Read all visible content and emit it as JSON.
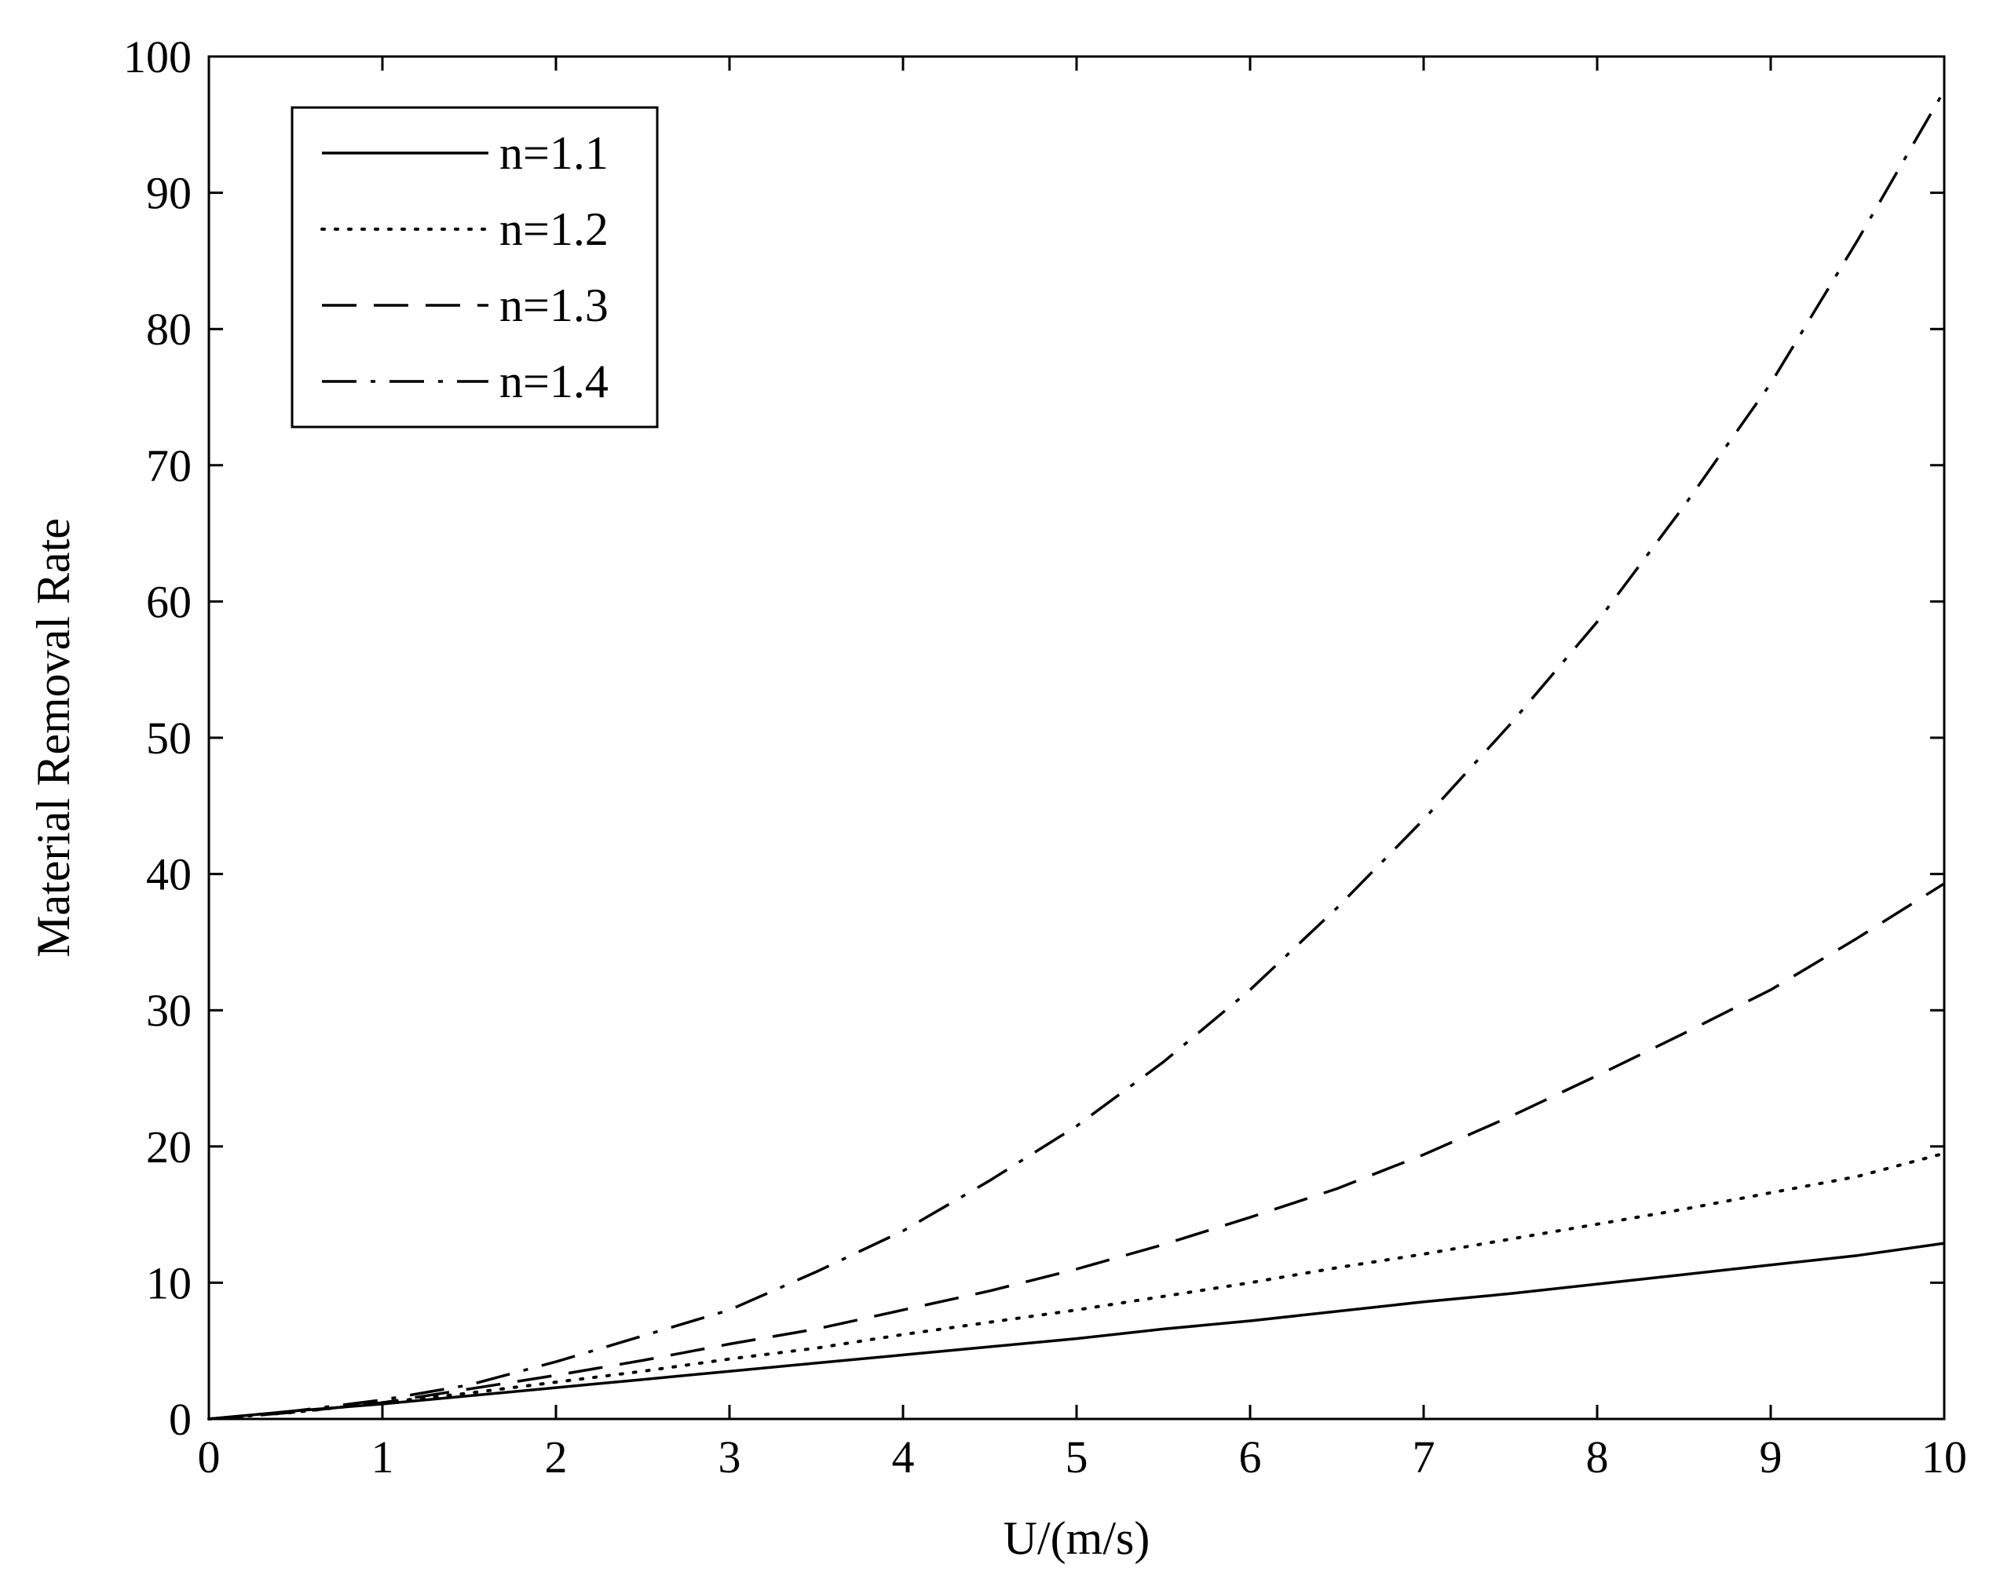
{
  "chart_data": {
    "type": "line",
    "title": "",
    "xlabel": "U/(m/s)",
    "ylabel": "Material Removal Rate",
    "xlim": [
      0,
      10
    ],
    "ylim": [
      0,
      100
    ],
    "x_ticks": [
      "0",
      "1",
      "2",
      "3",
      "4",
      "5",
      "6",
      "7",
      "8",
      "9",
      "10"
    ],
    "y_ticks": [
      "0",
      "10",
      "20",
      "30",
      "40",
      "50",
      "60",
      "70",
      "80",
      "90",
      "100"
    ],
    "grid": false,
    "legend_position": "top-left",
    "x": [
      0,
      0.5,
      1,
      1.5,
      2,
      2.5,
      3,
      3.5,
      4,
      4.5,
      5,
      5.5,
      6,
      6.5,
      7,
      7.5,
      8,
      8.5,
      9,
      9.5,
      10
    ],
    "series": [
      {
        "name": "n=1.1",
        "line_style": "solid",
        "color": "#000000",
        "values": [
          0,
          0.6,
          1.1,
          1.7,
          2.3,
          2.9,
          3.5,
          4.1,
          4.7,
          5.3,
          5.9,
          6.6,
          7.2,
          7.9,
          8.6,
          9.2,
          9.9,
          10.6,
          11.3,
          12.0,
          12.9
        ]
      },
      {
        "name": "n=1.2",
        "line_style": "dotted",
        "color": "#000000",
        "values": [
          0,
          0.5,
          1.2,
          1.9,
          2.7,
          3.5,
          4.4,
          5.2,
          6.2,
          7.1,
          8.0,
          9.0,
          10.0,
          11.1,
          12.1,
          13.2,
          14.3,
          15.4,
          16.6,
          17.8,
          19.5
        ]
      },
      {
        "name": "n=1.3",
        "line_style": "dashed",
        "color": "#000000",
        "values": [
          0,
          0.5,
          1.2,
          2.2,
          3.2,
          4.3,
          5.5,
          6.6,
          8.0,
          9.4,
          11.0,
          12.8,
          14.8,
          16.9,
          19.4,
          22.2,
          25.2,
          28.3,
          31.5,
          35.3,
          39.3
        ]
      },
      {
        "name": "n=1.4",
        "line_style": "dashdot",
        "color": "#000000",
        "values": [
          0,
          0.6,
          1.4,
          2.5,
          4.2,
          6.1,
          8.0,
          10.8,
          13.8,
          17.5,
          21.5,
          26.2,
          31.5,
          37.5,
          44.0,
          51.0,
          58.5,
          67.0,
          76.0,
          86.5,
          97.5
        ]
      }
    ]
  }
}
